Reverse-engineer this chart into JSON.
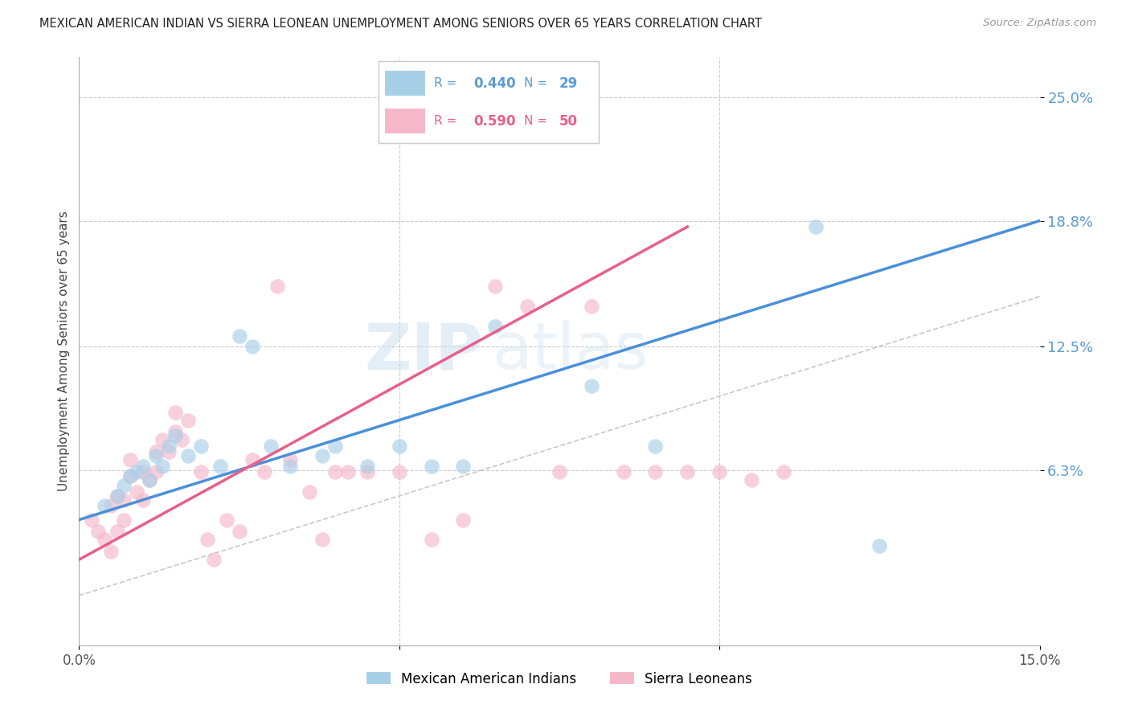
{
  "title": "MEXICAN AMERICAN INDIAN VS SIERRA LEONEAN UNEMPLOYMENT AMONG SENIORS OVER 65 YEARS CORRELATION CHART",
  "source": "Source: ZipAtlas.com",
  "ylabel": "Unemployment Among Seniors over 65 years",
  "ytick_labels": [
    "25.0%",
    "18.8%",
    "12.5%",
    "6.3%"
  ],
  "ytick_values": [
    0.25,
    0.188,
    0.125,
    0.063
  ],
  "xlim": [
    0.0,
    0.15
  ],
  "ylim": [
    -0.025,
    0.27
  ],
  "legend_entry1_R": "0.440",
  "legend_entry1_N": "29",
  "legend_entry2_R": "0.590",
  "legend_entry2_N": "50",
  "color_blue": "#a8cfe8",
  "color_pink": "#f5b8c8",
  "color_blue_line": "#4a90d9",
  "color_pink_line": "#e8608a",
  "color_diag": "#bbbbbb",
  "watermark_zip": "ZIP",
  "watermark_atlas": "atlas",
  "blue_line_x": [
    0.0,
    0.15
  ],
  "blue_line_y": [
    0.038,
    0.188
  ],
  "pink_line_x": [
    0.0,
    0.095
  ],
  "pink_line_y": [
    0.018,
    0.185
  ],
  "blue_scatter_x": [
    0.004,
    0.006,
    0.007,
    0.008,
    0.009,
    0.01,
    0.011,
    0.012,
    0.013,
    0.014,
    0.015,
    0.017,
    0.019,
    0.022,
    0.025,
    0.027,
    0.03,
    0.033,
    0.038,
    0.04,
    0.045,
    0.05,
    0.055,
    0.06,
    0.065,
    0.08,
    0.09,
    0.115,
    0.125
  ],
  "blue_scatter_y": [
    0.045,
    0.05,
    0.055,
    0.06,
    0.062,
    0.065,
    0.058,
    0.07,
    0.065,
    0.075,
    0.08,
    0.07,
    0.075,
    0.065,
    0.13,
    0.125,
    0.075,
    0.065,
    0.07,
    0.075,
    0.065,
    0.075,
    0.065,
    0.065,
    0.135,
    0.105,
    0.075,
    0.185,
    0.025
  ],
  "pink_scatter_x": [
    0.002,
    0.003,
    0.004,
    0.005,
    0.005,
    0.006,
    0.006,
    0.007,
    0.007,
    0.008,
    0.008,
    0.009,
    0.01,
    0.01,
    0.011,
    0.012,
    0.012,
    0.013,
    0.014,
    0.015,
    0.015,
    0.016,
    0.017,
    0.019,
    0.02,
    0.021,
    0.023,
    0.025,
    0.027,
    0.029,
    0.031,
    0.033,
    0.036,
    0.038,
    0.04,
    0.042,
    0.045,
    0.05,
    0.055,
    0.06,
    0.065,
    0.07,
    0.075,
    0.08,
    0.085,
    0.09,
    0.095,
    0.1,
    0.105,
    0.11
  ],
  "pink_scatter_y": [
    0.038,
    0.032,
    0.028,
    0.022,
    0.045,
    0.032,
    0.05,
    0.038,
    0.048,
    0.06,
    0.068,
    0.052,
    0.048,
    0.062,
    0.058,
    0.072,
    0.062,
    0.078,
    0.072,
    0.082,
    0.092,
    0.078,
    0.088,
    0.062,
    0.028,
    0.018,
    0.038,
    0.032,
    0.068,
    0.062,
    0.155,
    0.068,
    0.052,
    0.028,
    0.062,
    0.062,
    0.062,
    0.062,
    0.028,
    0.038,
    0.155,
    0.145,
    0.062,
    0.145,
    0.062,
    0.062,
    0.062,
    0.062,
    0.058,
    0.062
  ]
}
